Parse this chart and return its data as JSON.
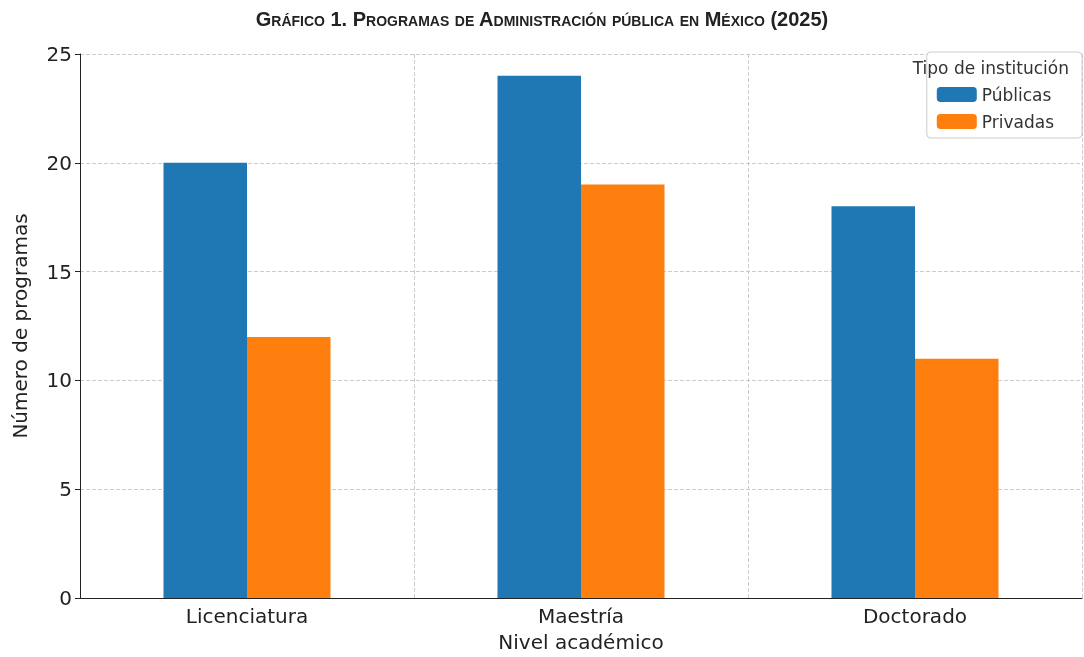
{
  "chart_data": {
    "type": "bar",
    "title": "Gráfico 1. Programas de Administración pública en México (2025)",
    "xlabel": "Nivel académico",
    "ylabel": "Número de programas",
    "legend_title": "Tipo de institución",
    "categories": [
      "Licenciatura",
      "Maestría",
      "Doctorado"
    ],
    "series": [
      {
        "name": "Públicas",
        "color": "#1f77b4",
        "values": [
          20,
          24,
          18
        ]
      },
      {
        "name": "Privadas",
        "color": "#ff7f0e",
        "values": [
          12,
          19,
          11
        ]
      }
    ],
    "ylim": [
      0,
      25
    ],
    "yticks": [
      0,
      5,
      10,
      15,
      20,
      25
    ],
    "grid": true,
    "legend": "top right"
  }
}
